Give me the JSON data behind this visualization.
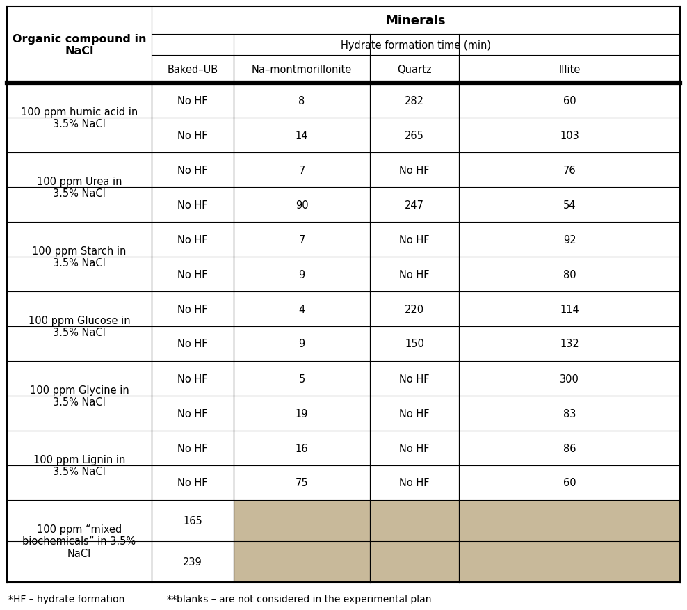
{
  "title_col1": "Organic compound in\nNaCl",
  "header_minerals": "Minerals",
  "header_subrow": "Hydrate formation time (min)",
  "col_headers": [
    "Baked–UB",
    "Na–montmorillonite",
    "Quartz",
    "Illite"
  ],
  "row_labels": [
    "100 ppm humic acid in\n3.5% NaCl",
    "100 ppm Urea in\n3.5% NaCl",
    "100 ppm Starch in\n3.5% NaCl",
    "100 ppm Glucose in\n3.5% NaCl",
    "100 ppm Glycine in\n3.5% NaCl",
    "100 ppm Lignin in\n3.5% NaCl",
    "100 ppm “mixed\nbiochemicals” in 3.5%\nNaCl"
  ],
  "table_data": [
    [
      "No HF",
      "8",
      "282",
      "60"
    ],
    [
      "No HF",
      "14",
      "265",
      "103"
    ],
    [
      "No HF",
      "7",
      "No HF",
      "76"
    ],
    [
      "No HF",
      "90",
      "247",
      "54"
    ],
    [
      "No HF",
      "7",
      "No HF",
      "92"
    ],
    [
      "No HF",
      "9",
      "No HF",
      "80"
    ],
    [
      "No HF",
      "4",
      "220",
      "114"
    ],
    [
      "No HF",
      "9",
      "150",
      "132"
    ],
    [
      "No HF",
      "5",
      "No HF",
      "300"
    ],
    [
      "No HF",
      "19",
      "No HF",
      "83"
    ],
    [
      "No HF",
      "16",
      "No HF",
      "86"
    ],
    [
      "No HF",
      "75",
      "No HF",
      "60"
    ],
    [
      "165",
      "",
      "",
      ""
    ],
    [
      "239",
      "",
      "",
      ""
    ]
  ],
  "footnote1": "*HF – hydrate formation",
  "footnote2": "**blanks – are not considered in the experimental plan",
  "tan_color": "#C8B99A",
  "white_color": "#FFFFFF",
  "border_color": "#000000"
}
